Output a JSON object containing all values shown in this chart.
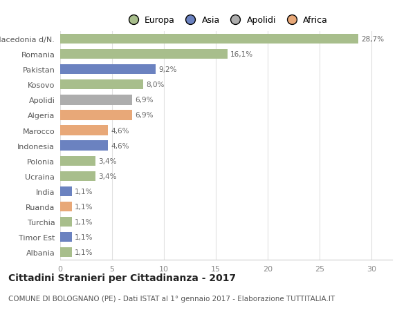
{
  "categories": [
    "Macedonia d/N.",
    "Romania",
    "Pakistan",
    "Kosovo",
    "Apolidi",
    "Algeria",
    "Marocco",
    "Indonesia",
    "Polonia",
    "Ucraina",
    "India",
    "Ruanda",
    "Turchia",
    "Timor Est",
    "Albania"
  ],
  "values": [
    28.7,
    16.1,
    9.2,
    8.0,
    6.9,
    6.9,
    4.6,
    4.6,
    3.4,
    3.4,
    1.1,
    1.1,
    1.1,
    1.1,
    1.1
  ],
  "labels": [
    "28,7%",
    "16,1%",
    "9,2%",
    "8,0%",
    "6,9%",
    "6,9%",
    "4,6%",
    "4,6%",
    "3,4%",
    "3,4%",
    "1,1%",
    "1,1%",
    "1,1%",
    "1,1%",
    "1,1%"
  ],
  "colors": [
    "#a8be8c",
    "#a8be8c",
    "#6b82c0",
    "#a8be8c",
    "#adadad",
    "#e8a878",
    "#e8a878",
    "#6b82c0",
    "#a8be8c",
    "#a8be8c",
    "#6b82c0",
    "#e8a878",
    "#a8be8c",
    "#6b82c0",
    "#a8be8c"
  ],
  "legend_labels": [
    "Europa",
    "Asia",
    "Apolidi",
    "Africa"
  ],
  "legend_colors": [
    "#a8be8c",
    "#6b82c0",
    "#adadad",
    "#e8a878"
  ],
  "title": "Cittadini Stranieri per Cittadinanza - 2017",
  "subtitle": "COMUNE DI BOLOGNANO (PE) - Dati ISTAT al 1° gennaio 2017 - Elaborazione TUTTITALIA.IT",
  "xlim": [
    0,
    32
  ],
  "xticks": [
    0,
    5,
    10,
    15,
    20,
    25,
    30
  ],
  "bg_color": "#ffffff",
  "grid_color": "#e0e0e0",
  "bar_height": 0.65,
  "title_fontsize": 10,
  "subtitle_fontsize": 7.5,
  "label_fontsize": 7.5,
  "tick_fontsize": 8,
  "legend_fontsize": 9
}
